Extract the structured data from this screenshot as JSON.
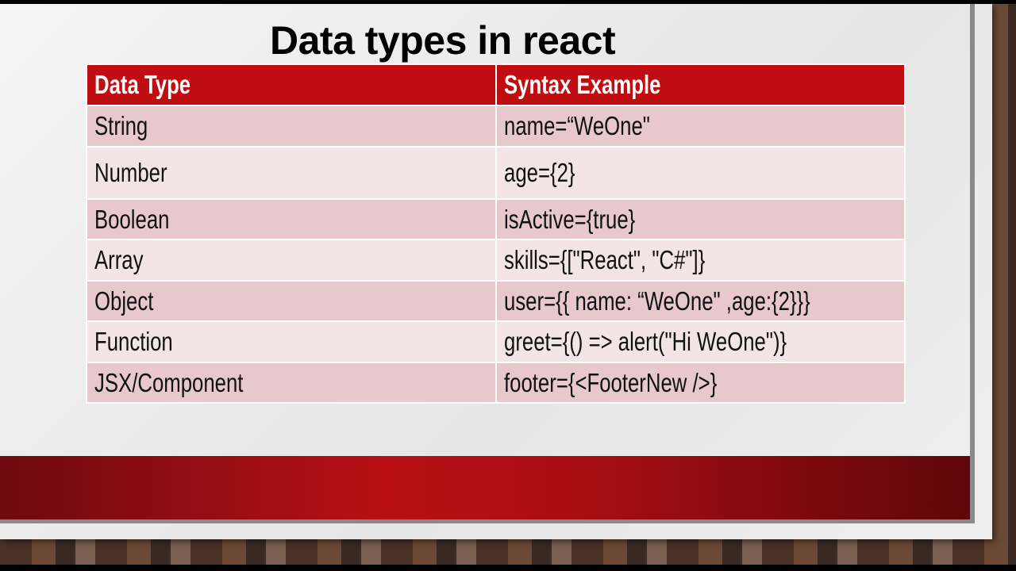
{
  "title": "Data types in react",
  "table": {
    "headers": [
      "Data Type",
      "Syntax Example"
    ],
    "rows": [
      [
        "String",
        "name=“WeOne\""
      ],
      [
        "Number",
        "age={2}"
      ],
      [
        "Boolean",
        "isActive={true}"
      ],
      [
        "Array",
        "skills={[\"React\", \"C#\"]}"
      ],
      [
        "Object",
        "user={{ name: “WeOne\" ,age:{2}}}"
      ],
      [
        "Function",
        "greet={() => alert(\"Hi WeOne\")}"
      ],
      [
        "JSX/Component",
        "footer={<FooterNew />}"
      ]
    ]
  },
  "colors": {
    "header": "#c00d12",
    "row_odd": "#e8c9cb",
    "row_even": "#f3e5e6",
    "band": "#b81015"
  }
}
